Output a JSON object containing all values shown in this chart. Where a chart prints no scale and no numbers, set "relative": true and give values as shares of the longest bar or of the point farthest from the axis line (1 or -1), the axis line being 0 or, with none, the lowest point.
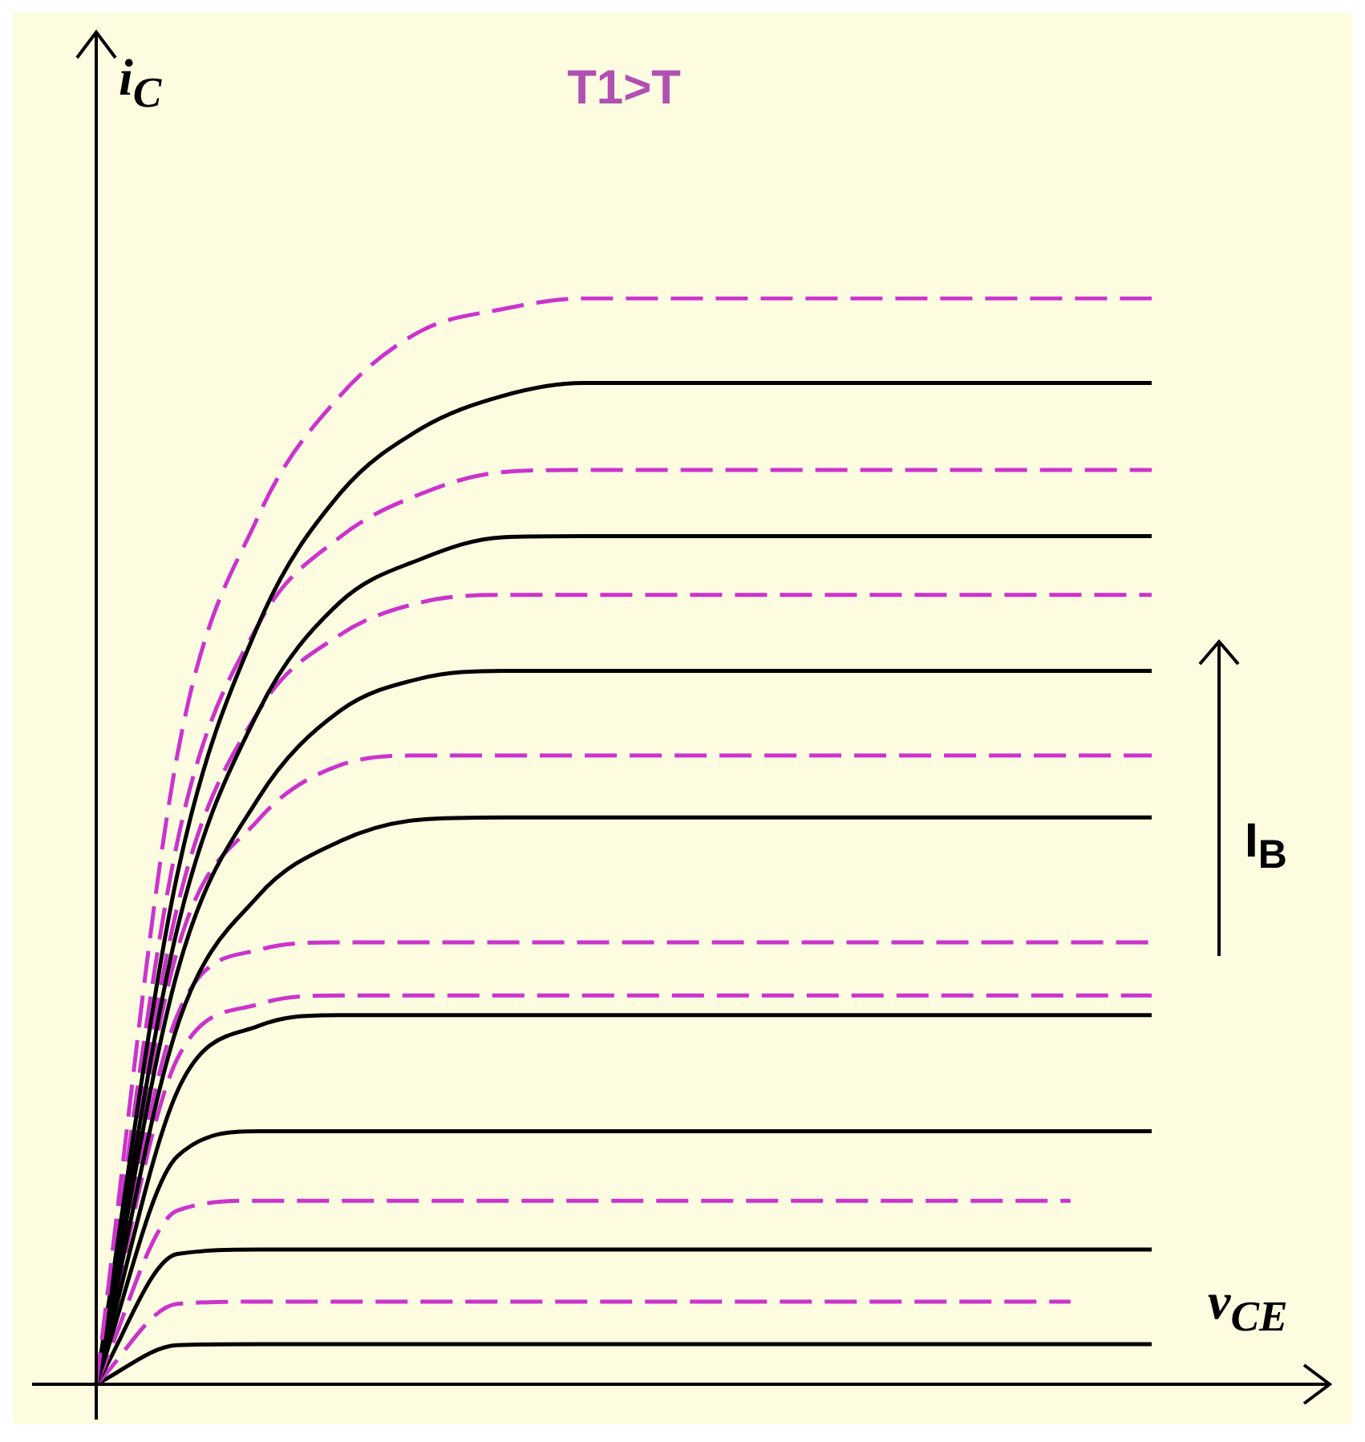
{
  "chart_data": {
    "type": "line",
    "relative": true,
    "title": "T1>T",
    "xlabel": "v$_{CE}$",
    "ylabel": "i$_{C}$",
    "annotations": [
      "I$_{B}$"
    ],
    "categories": [
      null,
      null,
      null,
      null,
      null,
      null,
      null,
      null,
      null,
      null,
      null,
      null,
      null,
      null
    ],
    "series": [
      {
        "color": "#cc33cc",
        "line_style": "dashed",
        "values": [
          0,
          0.58,
          0.8,
          0.91,
          0.97,
          0.99,
          1,
          1,
          1,
          1,
          1,
          1,
          1,
          1
        ]
      },
      {
        "color": "#000000",
        "line_style": "solid",
        "values": [
          0,
          0.47,
          0.7,
          0.82,
          0.88,
          0.91,
          0.922,
          0.922,
          0.922,
          0.922,
          0.922,
          0.922,
          0.922,
          0.922
        ]
      },
      {
        "color": "#cc33cc",
        "line_style": "dashed",
        "values": [
          0,
          0.5,
          0.7,
          0.78,
          0.82,
          0.84,
          0.842,
          0.842,
          0.842,
          0.842,
          0.842,
          0.842,
          0.842,
          0.842
        ]
      },
      {
        "color": "#000000",
        "line_style": "solid",
        "values": [
          0,
          0.42,
          0.62,
          0.72,
          0.76,
          0.78,
          0.781,
          0.781,
          0.781,
          0.781,
          0.781,
          0.781,
          0.781,
          0.781
        ]
      },
      {
        "color": "#cc33cc",
        "line_style": "dashed",
        "values": [
          0,
          0.44,
          0.62,
          0.69,
          0.72,
          0.727,
          0.727,
          0.727,
          0.727,
          0.727,
          0.727,
          0.727,
          0.727,
          0.727
        ]
      },
      {
        "color": "#000000",
        "line_style": "solid",
        "values": [
          0,
          0.38,
          0.54,
          0.62,
          0.65,
          0.657,
          0.657,
          0.657,
          0.657,
          0.657,
          0.657,
          0.657,
          0.657,
          0.657
        ]
      },
      {
        "color": "#cc33cc",
        "line_style": "dashed",
        "values": [
          0,
          0.4,
          0.52,
          0.57,
          0.579,
          0.579,
          0.579,
          0.579,
          0.579,
          0.579,
          0.579,
          0.579,
          0.579,
          0.579
        ]
      },
      {
        "color": "#000000",
        "line_style": "solid",
        "values": [
          0,
          0.33,
          0.45,
          0.5,
          0.52,
          0.522,
          0.522,
          0.522,
          0.522,
          0.522,
          0.522,
          0.522,
          0.522,
          0.522
        ]
      },
      {
        "color": "#cc33cc",
        "line_style": "dashed",
        "values": [
          0,
          0.34,
          0.4,
          0.407,
          0.407,
          0.407,
          0.407,
          0.407,
          0.407,
          0.407,
          0.407,
          0.407,
          0.407,
          0.407
        ]
      },
      {
        "color": "#000000",
        "line_style": "solid",
        "values": [
          0,
          0.27,
          0.33,
          0.34,
          0.34,
          0.34,
          0.34,
          0.34,
          0.34,
          0.34,
          0.34,
          0.34,
          0.34,
          0.34
        ]
      },
      {
        "color": "#cc33cc",
        "line_style": "dashed",
        "values": [
          0,
          0.3,
          0.35,
          0.358,
          0.358,
          0.358,
          0.358,
          0.358,
          0.358,
          0.358,
          0.358,
          0.358,
          0.358,
          0.358
        ]
      },
      {
        "color": "#000000",
        "line_style": "solid",
        "values": [
          0,
          0.21,
          0.233,
          0.233,
          0.233,
          0.233,
          0.233,
          0.233,
          0.233,
          0.233,
          0.233,
          0.233,
          0.233,
          0.233
        ]
      },
      {
        "color": "#cc33cc",
        "line_style": "dashed",
        "values": [
          0,
          0.16,
          0.169,
          0.169,
          0.169,
          0.169,
          0.169,
          0.169,
          0.169,
          0.169,
          0.169,
          0.169,
          0.169,
          null
        ]
      },
      {
        "color": "#000000",
        "line_style": "solid",
        "values": [
          0,
          0.12,
          0.124,
          0.124,
          0.124,
          0.124,
          0.124,
          0.124,
          0.124,
          0.124,
          0.124,
          0.124,
          0.124,
          0.124
        ]
      },
      {
        "color": "#cc33cc",
        "line_style": "dashed",
        "values": [
          0,
          0.074,
          0.076,
          0.076,
          0.076,
          0.076,
          0.076,
          0.076,
          0.076,
          0.076,
          0.076,
          0.076,
          0.076,
          null
        ]
      },
      {
        "color": "#000000",
        "line_style": "solid",
        "values": [
          0,
          0.036,
          0.037,
          0.037,
          0.037,
          0.037,
          0.037,
          0.037,
          0.037,
          0.037,
          0.037,
          0.037,
          0.037,
          0.037
        ]
      }
    ]
  }
}
